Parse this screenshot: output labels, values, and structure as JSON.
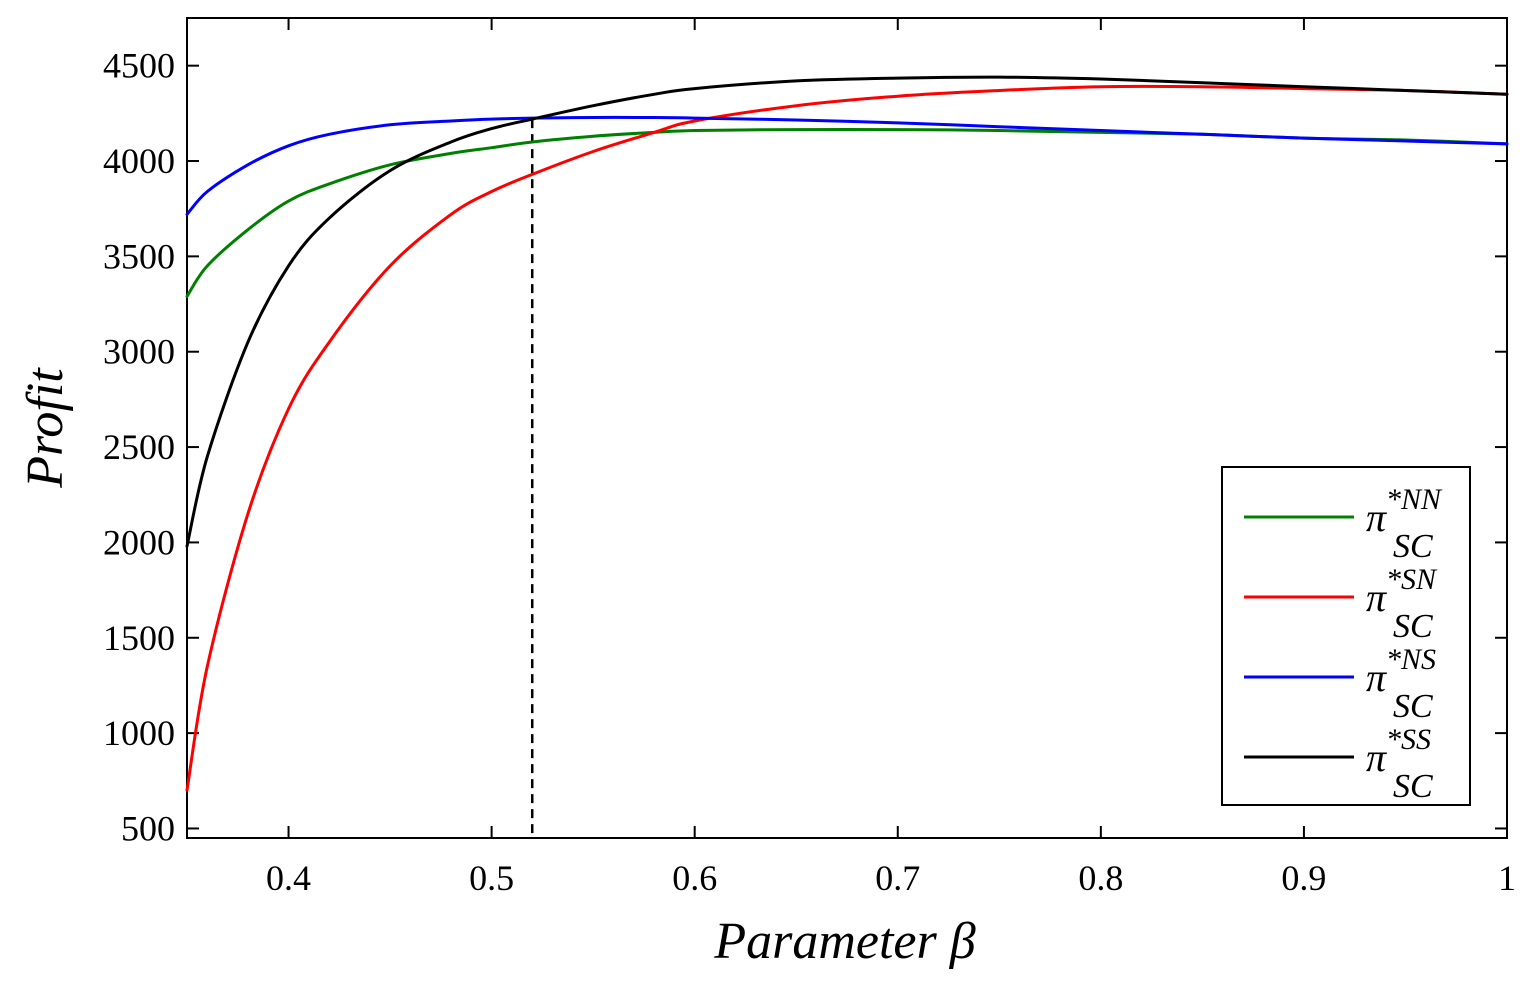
{
  "chart_data": {
    "type": "line",
    "xlabel": "Parameter β",
    "ylabel": "Profit",
    "xlim": [
      0.35,
      1.0
    ],
    "ylim": [
      450,
      4750
    ],
    "xticks": [
      0.4,
      0.5,
      0.6,
      0.7,
      0.8,
      0.9,
      1
    ],
    "xtick_labels": [
      "0.4",
      "0.5",
      "0.6",
      "0.7",
      "0.8",
      "0.9",
      "1"
    ],
    "yticks": [
      500,
      1000,
      1500,
      2000,
      2500,
      3000,
      3500,
      4000,
      4500
    ],
    "ytick_labels": [
      "500",
      "1000",
      "1500",
      "2000",
      "2500",
      "3000",
      "3500",
      "4000",
      "4500"
    ],
    "grid": false,
    "legend_position": "bottom-right",
    "reference_line": {
      "x": 0.52,
      "y_from": 450,
      "y_to": 4220,
      "style": "dashed",
      "color": "#000000"
    },
    "x": [
      0.35,
      0.36,
      0.38,
      0.4,
      0.42,
      0.45,
      0.48,
      0.5,
      0.52,
      0.55,
      0.58,
      0.6,
      0.65,
      0.7,
      0.75,
      0.8,
      0.85,
      0.9,
      0.95,
      1.0
    ],
    "series": [
      {
        "name": "NN",
        "legend": {
          "symbol": "π",
          "superscript": "*NN",
          "subscript": "SC"
        },
        "color": "#008000",
        "values": [
          3290,
          3450,
          3640,
          3790,
          3880,
          3980,
          4040,
          4070,
          4100,
          4130,
          4150,
          4160,
          4165,
          4165,
          4160,
          4150,
          4140,
          4120,
          4110,
          4090
        ]
      },
      {
        "name": "SN",
        "legend": {
          "symbol": "π",
          "superscript": "*SN",
          "subscript": "SC"
        },
        "color": "#ff0000",
        "values": [
          700,
          1350,
          2150,
          2700,
          3050,
          3450,
          3720,
          3840,
          3930,
          4050,
          4150,
          4210,
          4290,
          4340,
          4370,
          4390,
          4390,
          4380,
          4370,
          4350
        ]
      },
      {
        "name": "NS",
        "legend": {
          "symbol": "π",
          "superscript": "*NS",
          "subscript": "SC"
        },
        "color": "#0000ff",
        "values": [
          3720,
          3840,
          3980,
          4080,
          4140,
          4190,
          4210,
          4220,
          4225,
          4228,
          4228,
          4225,
          4215,
          4200,
          4180,
          4160,
          4140,
          4120,
          4105,
          4090
        ]
      },
      {
        "name": "SS",
        "legend": {
          "symbol": "π",
          "superscript": "*SS",
          "subscript": "SC"
        },
        "color": "#000000",
        "values": [
          1980,
          2450,
          3050,
          3450,
          3700,
          3950,
          4100,
          4170,
          4220,
          4290,
          4350,
          4380,
          4420,
          4435,
          4440,
          4430,
          4410,
          4390,
          4370,
          4350
        ]
      }
    ]
  }
}
